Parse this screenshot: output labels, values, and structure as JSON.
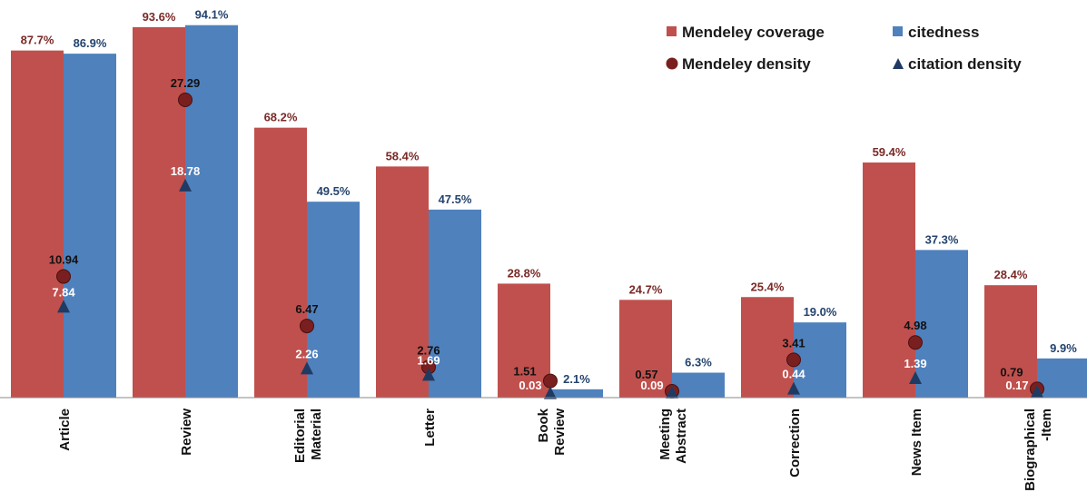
{
  "chart_data": {
    "type": "bar",
    "title": "",
    "xlabel": "",
    "ylabel": "",
    "ylim": [
      0,
      100
    ],
    "categories": [
      [
        "Article"
      ],
      [
        "Review"
      ],
      [
        "Editorial",
        "Material"
      ],
      [
        "Letter"
      ],
      [
        "Book",
        "Review"
      ],
      [
        "Meeting",
        "Abstract"
      ],
      [
        "Correction"
      ],
      [
        "News Item"
      ],
      [
        "Biographical",
        "-Item"
      ]
    ],
    "series": [
      {
        "name": "Mendeley coverage",
        "kind": "bar",
        "unit": "%",
        "color": "#c0504d",
        "values": [
          87.7,
          93.6,
          68.2,
          58.4,
          28.8,
          24.7,
          25.4,
          59.4,
          28.4
        ],
        "labels": [
          "87.7%",
          "93.6%",
          "68.2%",
          "58.4%",
          "28.8%",
          "24.7%",
          "25.4%",
          "59.4%",
          "28.4%"
        ]
      },
      {
        "name": "citedness",
        "kind": "bar",
        "unit": "%",
        "color": "#4f81bd",
        "values": [
          86.9,
          94.1,
          49.5,
          47.5,
          2.1,
          6.3,
          19.0,
          37.3,
          9.9
        ],
        "labels": [
          "86.9%",
          "94.1%",
          "49.5%",
          "47.5%",
          "2.1%",
          "6.3%",
          "19.0%",
          "37.3%",
          "9.9%"
        ]
      },
      {
        "name": "Mendeley density",
        "kind": "circle",
        "color": "#7a1f1f",
        "values": [
          10.94,
          27.29,
          6.47,
          2.76,
          1.51,
          0.57,
          3.41,
          4.98,
          0.79
        ],
        "labels": [
          "10.94",
          "27.29",
          "6.47",
          "2.76",
          "1.51",
          "0.57",
          "3.41",
          "4.98",
          "0.79"
        ]
      },
      {
        "name": "citation density",
        "kind": "triangle",
        "color": "#1f3b63",
        "values": [
          7.84,
          18.78,
          2.26,
          1.69,
          0.03,
          0.09,
          0.44,
          1.39,
          0.17
        ],
        "labels": [
          "7.84",
          "18.78",
          "2.26",
          "1.69",
          "0.03",
          "0.09",
          "0.44",
          "1.39",
          "0.17"
        ]
      }
    ],
    "legend": {
      "position": "top-right"
    },
    "grid": false
  }
}
